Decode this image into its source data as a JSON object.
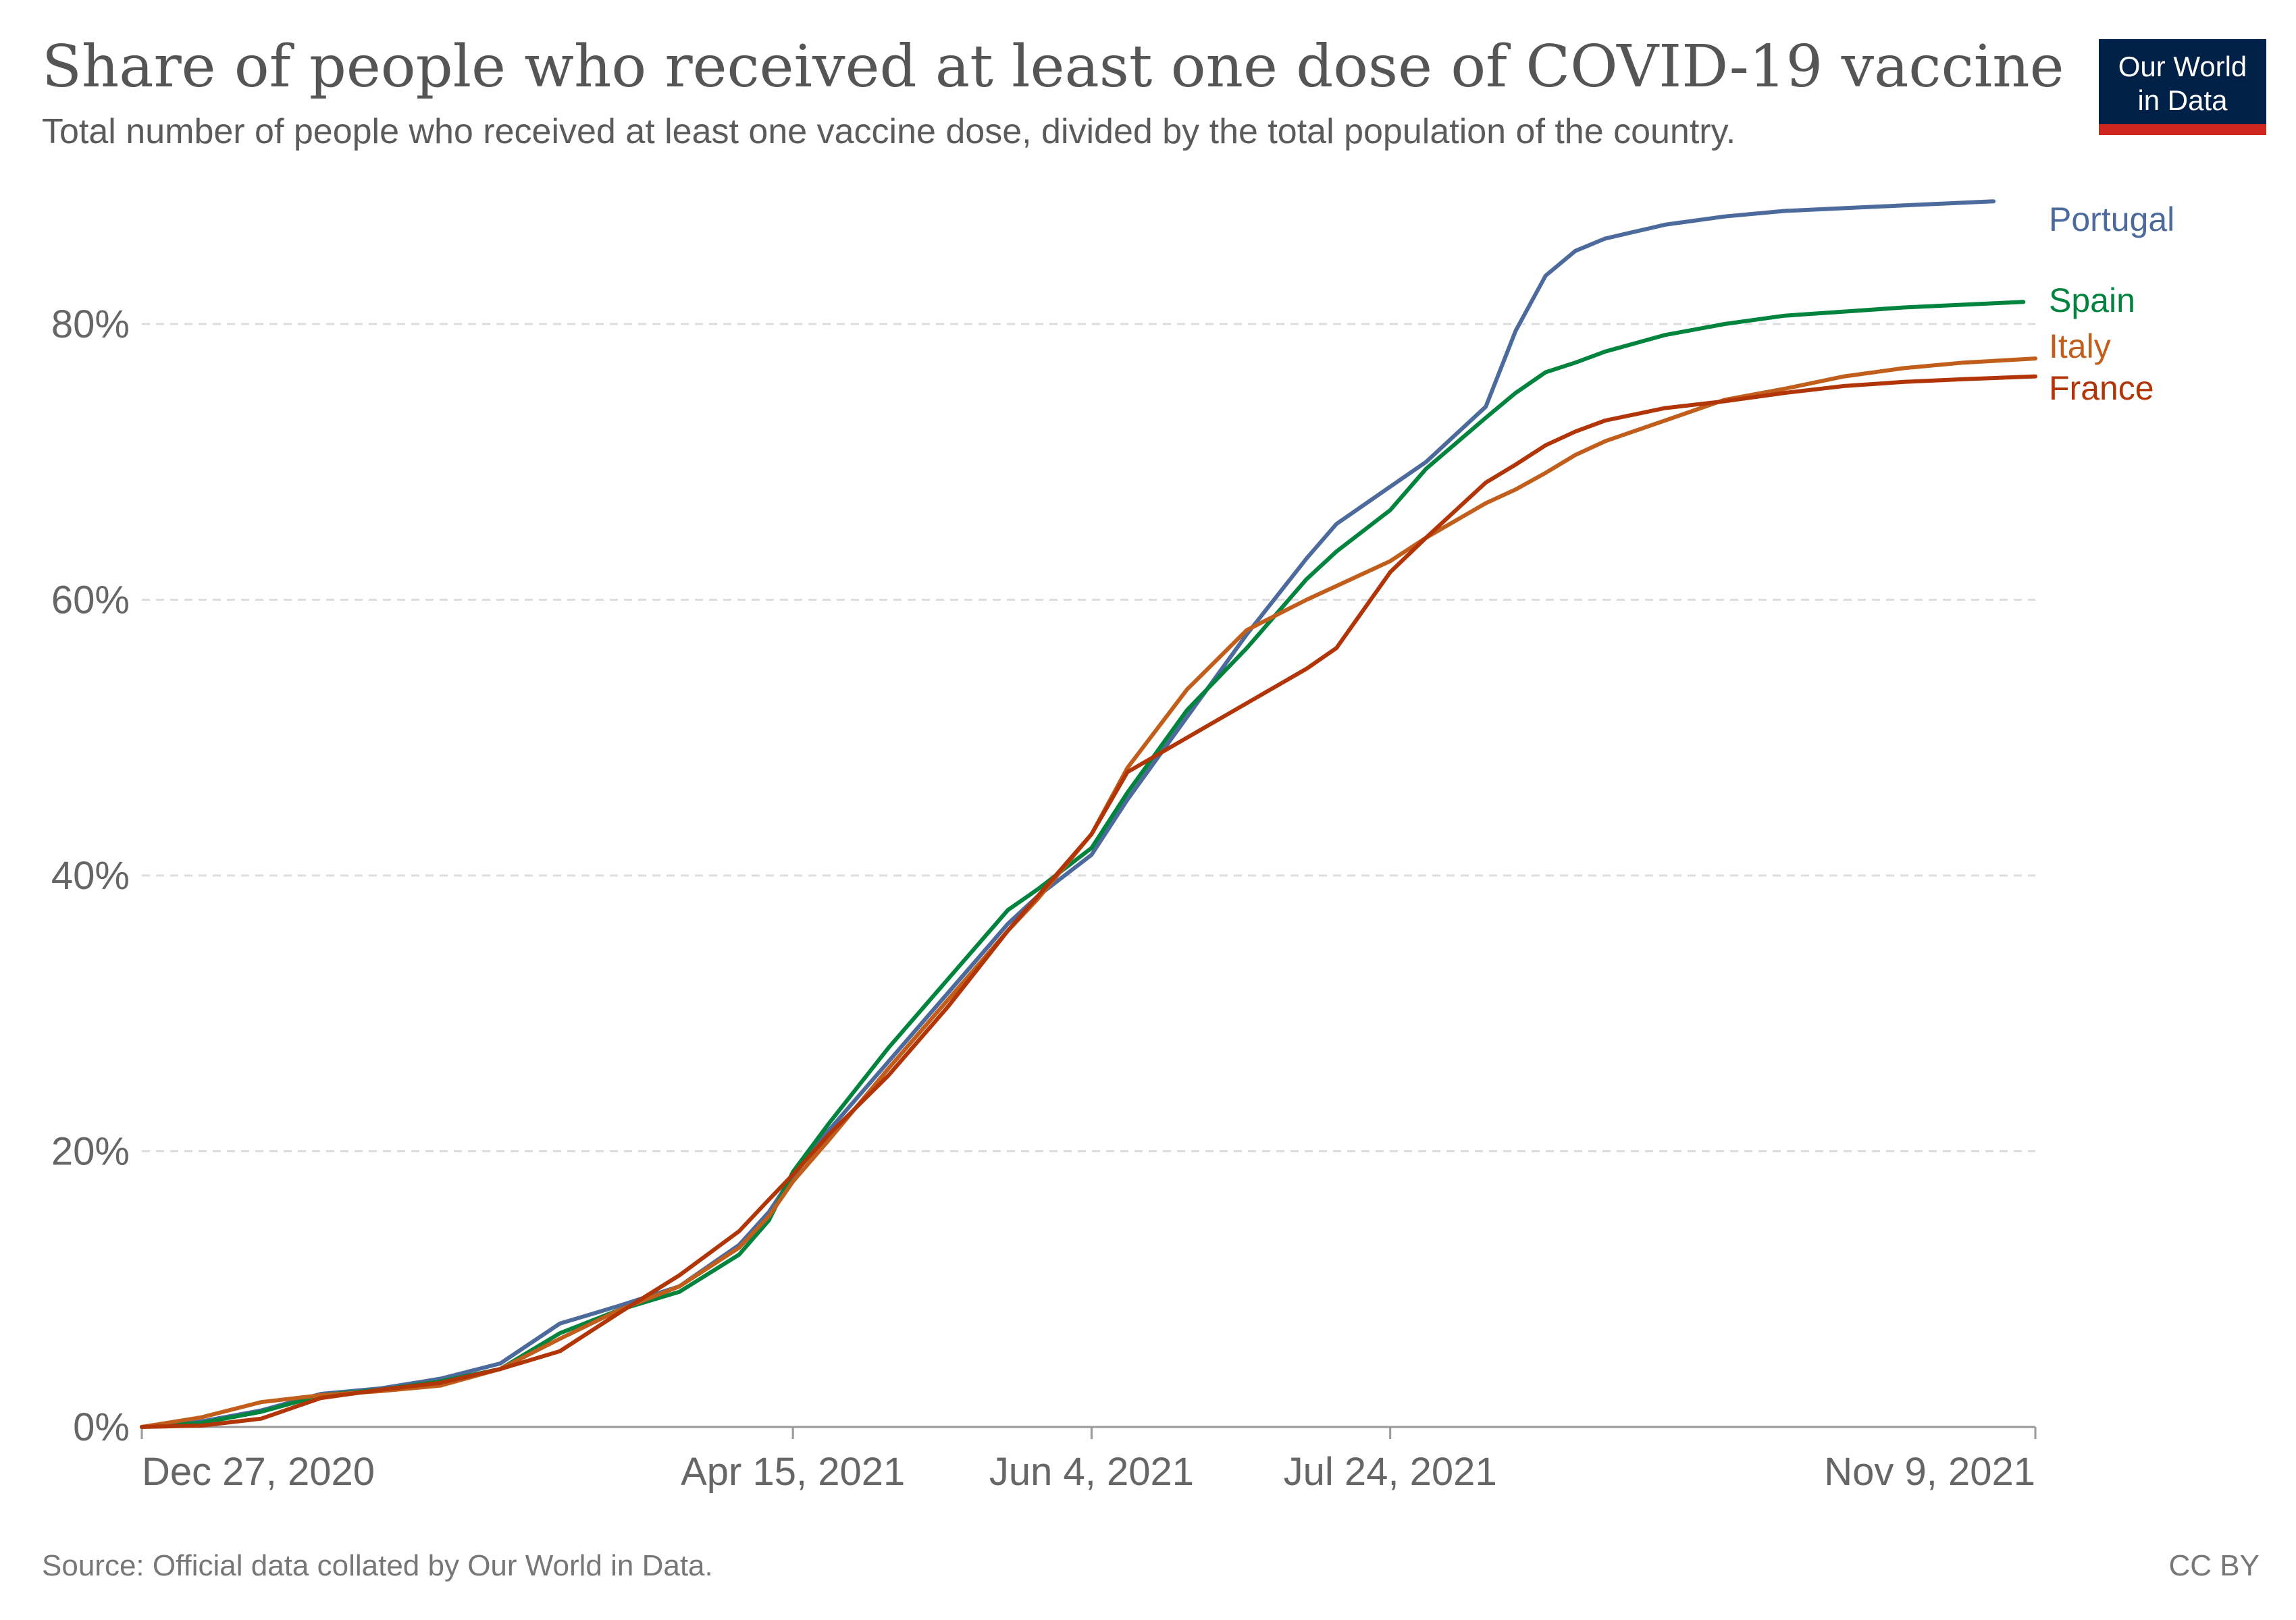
{
  "header": {
    "title": "Share of people who received at least one dose of COVID-19 vaccine",
    "subtitle": "Total number of people who received at least one vaccine dose, divided by the total population of the country."
  },
  "logo": {
    "line1": "Our World",
    "line2": "in Data",
    "bg_color": "#002147",
    "accent_color": "#ce261e"
  },
  "footer": {
    "source": "Source: Official data collated by Our World in Data.",
    "license": "CC BY"
  },
  "chart_data": {
    "type": "line",
    "title": "Share of people who received at least one dose of COVID-19 vaccine",
    "xlabel": "",
    "ylabel": "",
    "x_unit": "days since Dec 27, 2020",
    "xlim": [
      0,
      317
    ],
    "ylim": [
      0,
      90
    ],
    "y_ticks": [
      0,
      20,
      40,
      60,
      80
    ],
    "y_tick_labels": [
      "0%",
      "20%",
      "40%",
      "60%",
      "80%"
    ],
    "x_ticks": [
      0,
      109,
      159,
      209,
      317
    ],
    "x_tick_labels": [
      "Dec 27, 2020",
      "Apr 15, 2021",
      "Jun 4, 2021",
      "Jul 24, 2021",
      "Nov 9, 2021"
    ],
    "grid": true,
    "legend_position": "right",
    "series": [
      {
        "name": "Portugal",
        "color": "#4c6a9c",
        "x": [
          0,
          10,
          20,
          30,
          40,
          50,
          60,
          70,
          80,
          90,
          100,
          105,
          109,
          115,
          125,
          135,
          145,
          150,
          159,
          165,
          175,
          185,
          195,
          200,
          209,
          215,
          225,
          230,
          235,
          240,
          245,
          255,
          265,
          275,
          285,
          295,
          305,
          310
        ],
        "y": [
          0,
          0.4,
          1.2,
          2.4,
          2.8,
          3.5,
          4.6,
          7.5,
          8.8,
          10.2,
          13.2,
          15.6,
          18.2,
          21.5,
          26.5,
          31.5,
          36.5,
          38.5,
          41.5,
          45.5,
          51.5,
          57.5,
          63,
          65.5,
          68.2,
          70,
          74,
          79.5,
          83.5,
          85.3,
          86.2,
          87.2,
          87.8,
          88.2,
          88.4,
          88.6,
          88.8,
          88.9
        ]
      },
      {
        "name": "Spain",
        "color": "#00843d",
        "x": [
          0,
          10,
          20,
          30,
          40,
          50,
          60,
          70,
          80,
          90,
          100,
          105,
          109,
          115,
          125,
          135,
          145,
          150,
          159,
          165,
          175,
          185,
          195,
          200,
          209,
          215,
          225,
          230,
          235,
          240,
          245,
          255,
          265,
          275,
          285,
          295,
          305,
          315
        ],
        "y": [
          0,
          0.3,
          1.1,
          2.3,
          2.7,
          3.3,
          4.2,
          6.8,
          8.5,
          9.8,
          12.5,
          15,
          18.5,
          22,
          27.5,
          32.5,
          37.5,
          39,
          42,
          46,
          52,
          56.5,
          61.5,
          63.5,
          66.5,
          69.5,
          73.2,
          75,
          76.5,
          77.2,
          78,
          79.2,
          80,
          80.6,
          80.9,
          81.2,
          81.4,
          81.6
        ]
      },
      {
        "name": "Italy",
        "color": "#c15e1c",
        "x": [
          0,
          10,
          20,
          30,
          40,
          50,
          60,
          70,
          80,
          90,
          100,
          105,
          109,
          115,
          125,
          135,
          145,
          150,
          159,
          165,
          175,
          185,
          195,
          200,
          209,
          215,
          225,
          230,
          235,
          240,
          245,
          255,
          265,
          275,
          285,
          295,
          305,
          317
        ],
        "y": [
          0,
          0.7,
          1.8,
          2.3,
          2.6,
          3,
          4.2,
          6.4,
          8.5,
          10.2,
          13,
          15.3,
          17.8,
          20.8,
          26,
          31,
          36,
          38.3,
          43,
          47.8,
          53.5,
          57.8,
          60,
          61,
          62.8,
          64.5,
          67,
          68,
          69.2,
          70.5,
          71.5,
          73,
          74.5,
          75.3,
          76.2,
          76.8,
          77.2,
          77.5
        ]
      },
      {
        "name": "France",
        "color": "#b13507",
        "x": [
          0,
          10,
          20,
          30,
          40,
          50,
          60,
          70,
          80,
          90,
          100,
          105,
          109,
          115,
          125,
          135,
          145,
          150,
          159,
          165,
          175,
          185,
          195,
          200,
          209,
          215,
          225,
          230,
          235,
          240,
          245,
          255,
          265,
          275,
          285,
          295,
          305,
          317
        ],
        "y": [
          0,
          0.1,
          0.6,
          2.1,
          2.7,
          3.2,
          4.2,
          5.5,
          8.3,
          11,
          14.2,
          16.5,
          18.3,
          21.2,
          25.5,
          30.5,
          36,
          38.5,
          43,
          47.5,
          50,
          52.5,
          55,
          56.5,
          62,
          64.5,
          68.5,
          69.8,
          71.2,
          72.2,
          73,
          73.9,
          74.4,
          75,
          75.5,
          75.8,
          76,
          76.2
        ]
      }
    ]
  }
}
